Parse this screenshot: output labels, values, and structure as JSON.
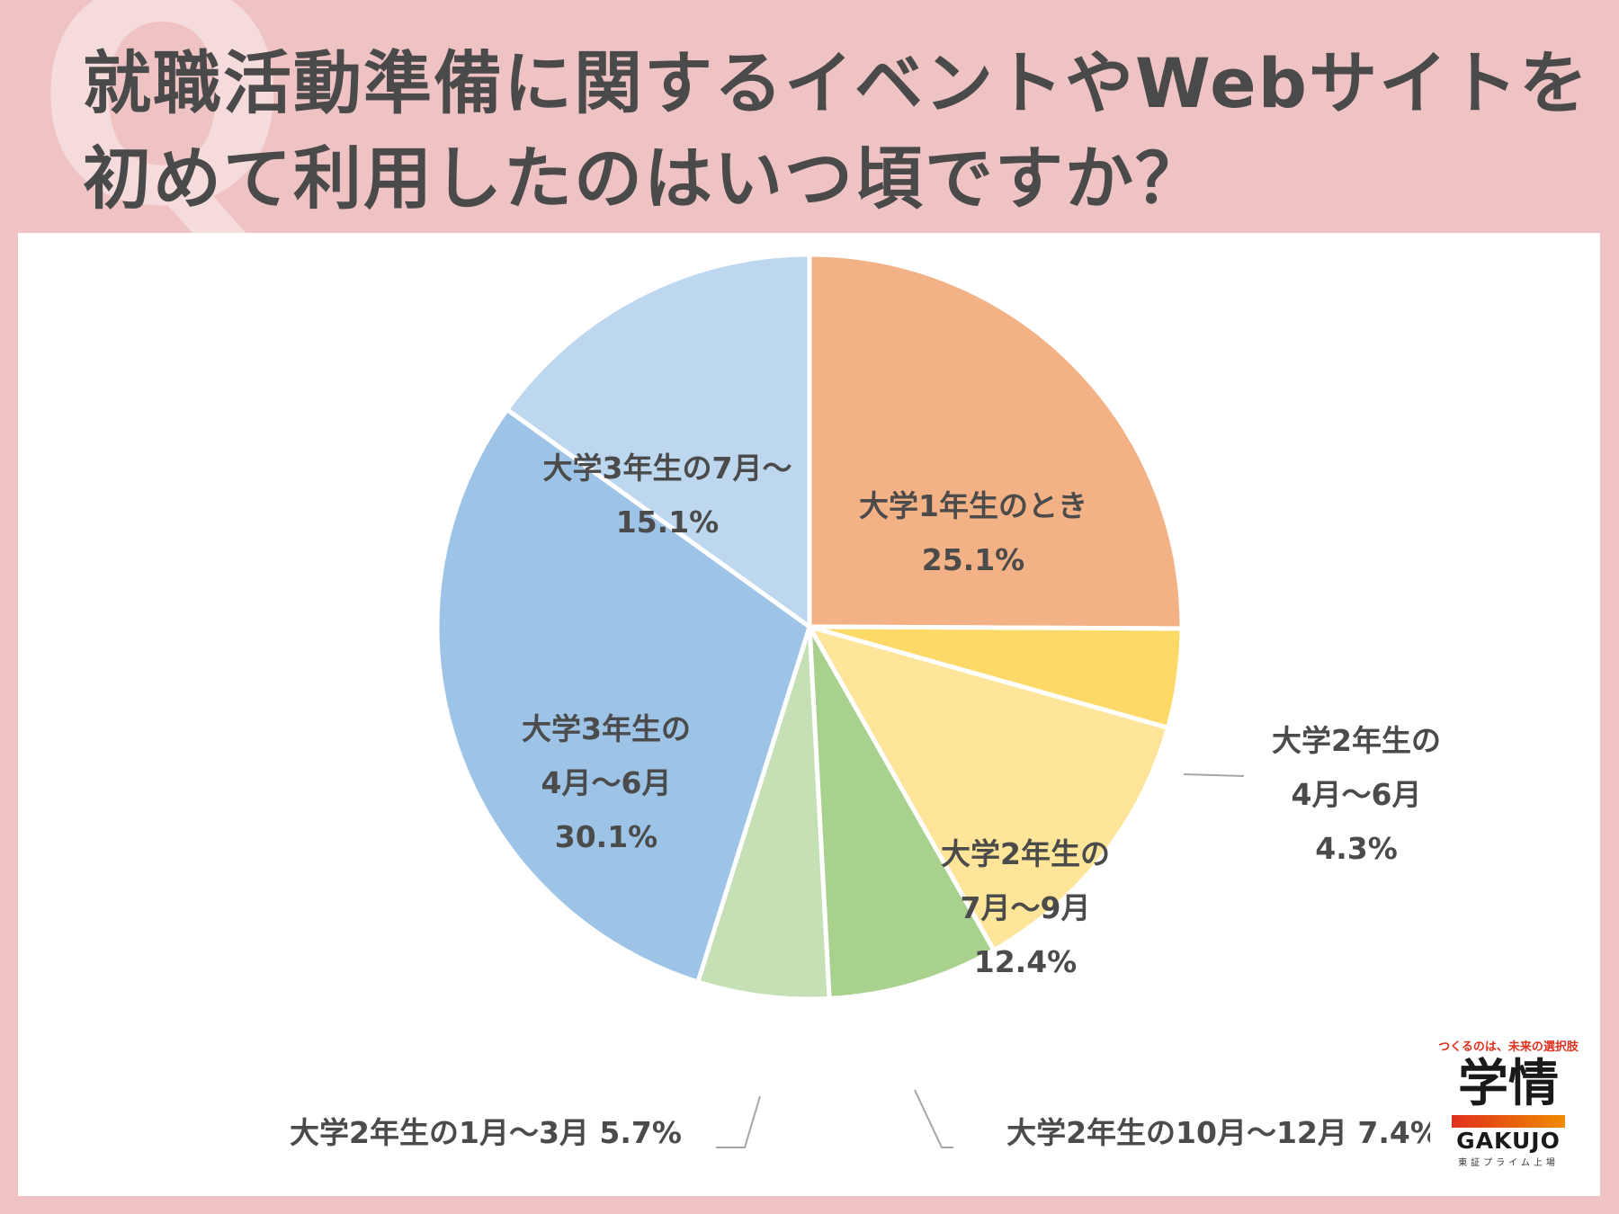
{
  "background_glyph": "Q",
  "title_lines": [
    "就職活動準備に関するイベントやWebサイトを",
    "初めて利用したのはいつ頃ですか？"
  ],
  "colors": {
    "page_bg": "#efc3c4",
    "panel_bg": "#ffffff",
    "text": "#4a4a4a"
  },
  "chart_data": {
    "type": "pie",
    "start_angle_deg": 0,
    "direction": "clockwise",
    "slices": [
      {
        "label": "大学1年生のとき",
        "value": 25.1,
        "display": "25.1%",
        "color": "#f3b286",
        "text_lines": [
          "大学1年生のとき",
          "25.1%"
        ]
      },
      {
        "label": "大学2年生の4月〜6月",
        "value": 4.3,
        "display": "4.3%",
        "color": "#fdd967",
        "text_lines": [
          "大学2年生の",
          "4月〜6月",
          "4.3%"
        ]
      },
      {
        "label": "大学2年生の7月〜9月",
        "value": 12.4,
        "display": "12.4%",
        "color": "#fee59a",
        "text_lines": [
          "大学2年生の",
          "7月〜9月",
          "12.4%"
        ]
      },
      {
        "label": "大学2年生の10月〜12月",
        "value": 7.4,
        "display": "7.4%",
        "color": "#a9d18e",
        "text_lines": [
          "大学2年生の10月〜12月 7.4%"
        ]
      },
      {
        "label": "大学2年生の1月〜3月",
        "value": 5.7,
        "display": "5.7%",
        "color": "#c5e0b4",
        "text_lines": [
          "大学2年生の1月〜3月 5.7%"
        ]
      },
      {
        "label": "大学3年生の4月〜6月",
        "value": 30.1,
        "display": "30.1%",
        "color": "#9dc3e6",
        "text_lines": [
          "大学3年生の",
          "4月〜6月",
          "30.1%"
        ]
      },
      {
        "label": "大学3年生の7月〜",
        "value": 15.1,
        "display": "15.1%",
        "color": "#bdd7ee",
        "text_lines": [
          "大学3年生の7月〜",
          "15.1%"
        ]
      }
    ]
  },
  "logo": {
    "tagline": "つくるのは、未来の選択肢",
    "name_kanji": "学情",
    "name_roman": "GAKUJO",
    "subtitle": "東証プライム上場"
  }
}
